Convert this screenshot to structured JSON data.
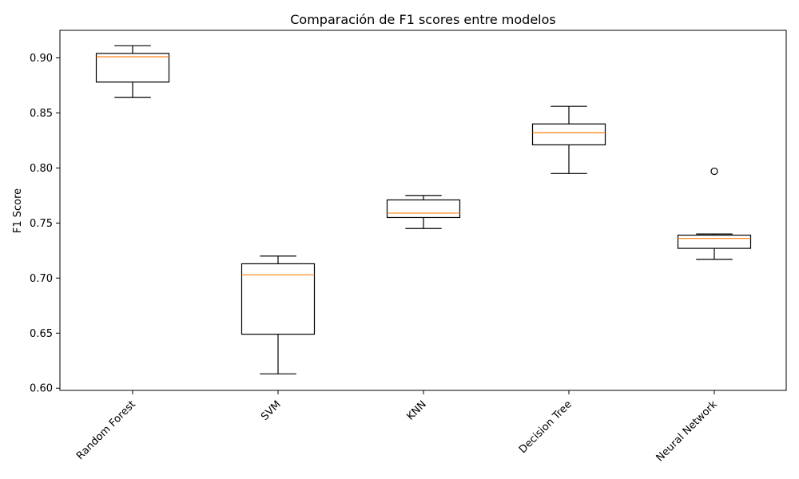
{
  "chart_data": {
    "type": "box",
    "title": "Comparación de F1 scores entre modelos",
    "xlabel": "",
    "ylabel": "F1 Score",
    "ylim": [
      0.598,
      0.925
    ],
    "yticks": [
      0.6,
      0.65,
      0.7,
      0.75,
      0.8,
      0.85,
      0.9
    ],
    "ytick_labels": [
      "0.60",
      "0.65",
      "0.70",
      "0.75",
      "0.80",
      "0.85",
      "0.90"
    ],
    "categories": [
      "Random Forest",
      "SVM",
      "KNN",
      "Decision Tree",
      "Neural Network"
    ],
    "xtick_rotation_deg": 45,
    "grid": false,
    "median_color": "#ff7f0e",
    "box_color": "#000000",
    "boxes": [
      {
        "name": "Random Forest",
        "whisker_low": 0.864,
        "q1": 0.878,
        "median": 0.901,
        "q3": 0.904,
        "whisker_high": 0.911,
        "outliers": []
      },
      {
        "name": "SVM",
        "whisker_low": 0.613,
        "q1": 0.649,
        "median": 0.703,
        "q3": 0.713,
        "whisker_high": 0.72,
        "outliers": []
      },
      {
        "name": "KNN",
        "whisker_low": 0.745,
        "q1": 0.755,
        "median": 0.759,
        "q3": 0.771,
        "whisker_high": 0.775,
        "outliers": []
      },
      {
        "name": "Decision Tree",
        "whisker_low": 0.795,
        "q1": 0.821,
        "median": 0.832,
        "q3": 0.84,
        "whisker_high": 0.856,
        "outliers": []
      },
      {
        "name": "Neural Network",
        "whisker_low": 0.717,
        "q1": 0.727,
        "median": 0.736,
        "q3": 0.739,
        "whisker_high": 0.74,
        "outliers": [
          0.797
        ]
      }
    ]
  }
}
